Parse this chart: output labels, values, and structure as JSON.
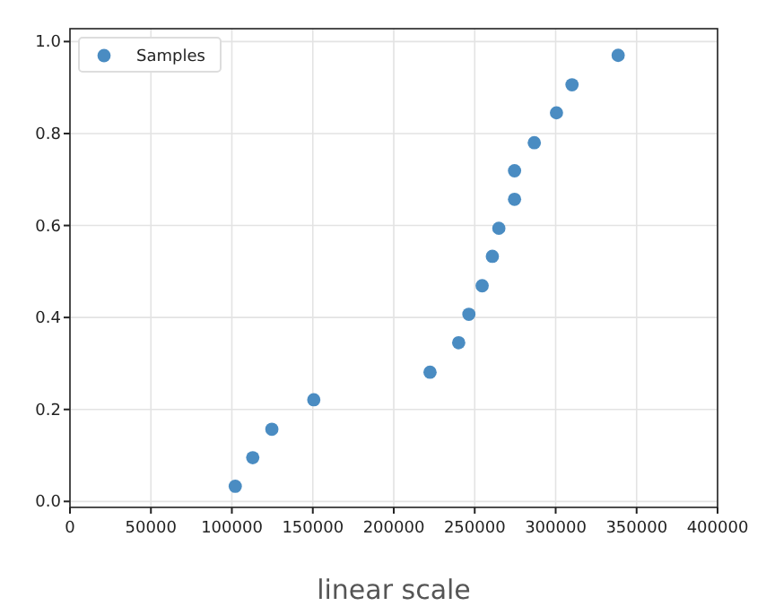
{
  "chart_data": {
    "type": "scatter",
    "xlabel": "linear scale",
    "x": [
      102100,
      112900,
      124700,
      150600,
      222400,
      240100,
      246400,
      254600,
      260900,
      264900,
      274600,
      274600,
      286800,
      300500,
      310100,
      338600
    ],
    "series": [
      {
        "name": "Samples",
        "color": "#4a8cc2",
        "values": [
          0.033,
          0.095,
          0.157,
          0.221,
          0.281,
          0.345,
          0.407,
          0.469,
          0.533,
          0.594,
          0.657,
          0.719,
          0.78,
          0.845,
          0.906,
          0.97
        ]
      }
    ],
    "xlim": [
      0,
      400000
    ],
    "xticks": [
      0,
      50000,
      100000,
      150000,
      200000,
      250000,
      300000,
      350000,
      400000
    ],
    "ylim": [
      -0.013,
      1.028
    ],
    "yticks": [
      {
        "value": 0,
        "label": "0.0"
      },
      {
        "value": 0.2,
        "label": "0.2"
      },
      {
        "value": 0.4,
        "label": "0.4"
      },
      {
        "value": 0.6,
        "label": "0.6"
      },
      {
        "value": 0.8,
        "label": "0.8"
      },
      {
        "value": 1,
        "label": "1.0"
      }
    ],
    "grid": true,
    "legend": "top left",
    "marker": "circle"
  }
}
